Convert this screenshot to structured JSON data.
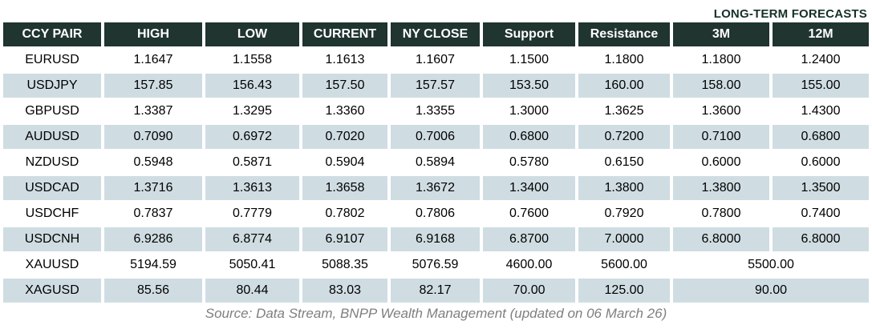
{
  "header": {
    "title": "LONG-TERM FORECASTS"
  },
  "chart_data": {
    "type": "table",
    "title": "LONG-TERM FORECASTS",
    "columns": [
      "CCY PAIR",
      "HIGH",
      "LOW",
      "CURRENT",
      "NY CLOSE",
      "Support",
      "Resistance",
      "3M",
      "12M"
    ],
    "rows": [
      {
        "pair": "EURUSD",
        "high": "1.1647",
        "low": "1.1558",
        "current": "1.1613",
        "ny_close": "1.1607",
        "support": "1.1500",
        "resistance": "1.1800",
        "m3": "1.1800",
        "m12": "1.2400"
      },
      {
        "pair": "USDJPY",
        "high": "157.85",
        "low": "156.43",
        "current": "157.50",
        "ny_close": "157.57",
        "support": "153.50",
        "resistance": "160.00",
        "m3": "158.00",
        "m12": "155.00"
      },
      {
        "pair": "GBPUSD",
        "high": "1.3387",
        "low": "1.3295",
        "current": "1.3360",
        "ny_close": "1.3355",
        "support": "1.3000",
        "resistance": "1.3625",
        "m3": "1.3600",
        "m12": "1.4300"
      },
      {
        "pair": "AUDUSD",
        "high": "0.7090",
        "low": "0.6972",
        "current": "0.7020",
        "ny_close": "0.7006",
        "support": "0.6800",
        "resistance": "0.7200",
        "m3": "0.7100",
        "m12": "0.6800"
      },
      {
        "pair": "NZDUSD",
        "high": "0.5948",
        "low": "0.5871",
        "current": "0.5904",
        "ny_close": "0.5894",
        "support": "0.5780",
        "resistance": "0.6150",
        "m3": "0.6000",
        "m12": "0.6000"
      },
      {
        "pair": "USDCAD",
        "high": "1.3716",
        "low": "1.3613",
        "current": "1.3658",
        "ny_close": "1.3672",
        "support": "1.3400",
        "resistance": "1.3800",
        "m3": "1.3800",
        "m12": "1.3500"
      },
      {
        "pair": "USDCHF",
        "high": "0.7837",
        "low": "0.7779",
        "current": "0.7802",
        "ny_close": "0.7806",
        "support": "0.7600",
        "resistance": "0.7920",
        "m3": "0.7800",
        "m12": "0.7400"
      },
      {
        "pair": "USDCNH",
        "high": "6.9286",
        "low": "6.8774",
        "current": "6.9107",
        "ny_close": "6.9168",
        "support": "6.8700",
        "resistance": "7.0000",
        "m3": "6.8000",
        "m12": "6.8000"
      },
      {
        "pair": "XAUUSD",
        "high": "5194.59",
        "low": "5050.41",
        "current": "5088.35",
        "ny_close": "5076.59",
        "support": "4600.00",
        "resistance": "5600.00",
        "forecast": "5500.00"
      },
      {
        "pair": "XAGUSD",
        "high": "85.56",
        "low": "80.44",
        "current": "83.03",
        "ny_close": "82.17",
        "support": "70.00",
        "resistance": "125.00",
        "forecast": "90.00"
      }
    ]
  },
  "footer": {
    "source": "Source: Data Stream, BNPP Wealth Management (updated on 06 March 26)"
  },
  "colors": {
    "header_bg": "#203430",
    "header_text": "#ffffff",
    "alt_row_bg": "#cfdde3",
    "title_text": "#16302a",
    "footer_text": "#7f7f7f",
    "body_text": "#000000"
  }
}
